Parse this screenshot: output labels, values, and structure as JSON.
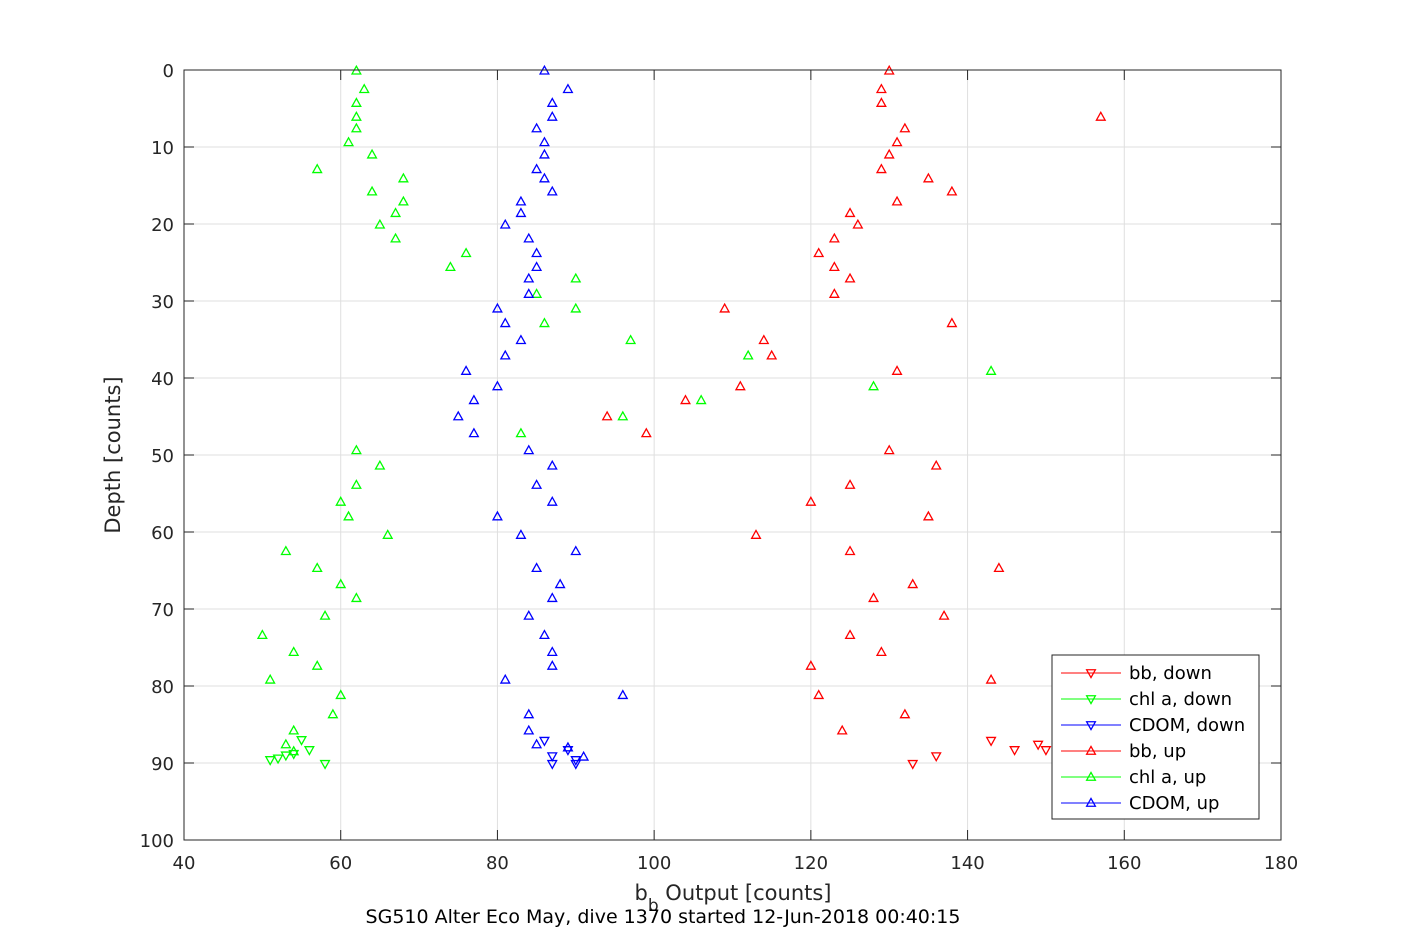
{
  "title": "SG510 Alter Eco May, dive 1370 started 12-Jun-2018 00:40:15",
  "chart_data": {
    "type": "scatter",
    "xlabel_main": "b",
    "xlabel_sub": "b",
    "xlabel_rest": " Output [counts]",
    "ylabel": "Depth [counts]",
    "xlim": [
      40,
      180
    ],
    "ylim": [
      0,
      100
    ],
    "y_reversed": true,
    "grid": true,
    "legend_position": "bottom-right",
    "xticks": [
      40,
      60,
      80,
      100,
      120,
      140,
      160,
      180
    ],
    "yticks": [
      0,
      10,
      20,
      30,
      40,
      50,
      60,
      70,
      80,
      90,
      100
    ],
    "series": [
      {
        "name": "bb, down",
        "color": "#ff0000",
        "marker": "triangle-down",
        "points": [
          [
            136,
            89.1
          ],
          [
            133,
            90.1
          ],
          [
            143,
            87.1
          ],
          [
            146,
            88.3
          ],
          [
            149,
            87.6
          ],
          [
            150,
            88.3
          ]
        ]
      },
      {
        "name": "chl a, down",
        "color": "#00ff00",
        "marker": "triangle-down",
        "points": [
          [
            55,
            87.0
          ],
          [
            56,
            88.3
          ],
          [
            53,
            89.0
          ],
          [
            52,
            89.4
          ],
          [
            51,
            89.6
          ],
          [
            54,
            88.8
          ],
          [
            58,
            90.1
          ]
        ]
      },
      {
        "name": "CDOM, down",
        "color": "#0000ff",
        "marker": "triangle-down",
        "points": [
          [
            86,
            87.1
          ],
          [
            87,
            89.1
          ],
          [
            89,
            88.3
          ],
          [
            90,
            89.6
          ],
          [
            90,
            90.1
          ],
          [
            87,
            90.1
          ]
        ]
      },
      {
        "name": "bb, up",
        "color": "#ff0000",
        "marker": "triangle-up",
        "points": [
          [
            130,
            0.1
          ],
          [
            129,
            2.5
          ],
          [
            129,
            4.3
          ],
          [
            157,
            6.1
          ],
          [
            132,
            7.6
          ],
          [
            131,
            9.4
          ],
          [
            130,
            11.0
          ],
          [
            129,
            12.9
          ],
          [
            135,
            14.1
          ],
          [
            138,
            15.8
          ],
          [
            131,
            17.1
          ],
          [
            125,
            18.6
          ],
          [
            126,
            20.1
          ],
          [
            123,
            21.9
          ],
          [
            121,
            23.8
          ],
          [
            123,
            25.6
          ],
          [
            125,
            27.1
          ],
          [
            123,
            29.1
          ],
          [
            109,
            31.0
          ],
          [
            138,
            32.9
          ],
          [
            114,
            35.1
          ],
          [
            115,
            37.1
          ],
          [
            131,
            39.1
          ],
          [
            111,
            41.1
          ],
          [
            104,
            42.9
          ],
          [
            94,
            45.0
          ],
          [
            99,
            47.2
          ],
          [
            130,
            49.4
          ],
          [
            136,
            51.4
          ],
          [
            125,
            53.9
          ],
          [
            120,
            56.1
          ],
          [
            135,
            58.0
          ],
          [
            113,
            60.4
          ],
          [
            125,
            62.5
          ],
          [
            144,
            64.7
          ],
          [
            133,
            66.8
          ],
          [
            128,
            68.6
          ],
          [
            137,
            70.9
          ],
          [
            125,
            73.4
          ],
          [
            129,
            75.6
          ],
          [
            120,
            77.4
          ],
          [
            143,
            79.2
          ],
          [
            121,
            81.2
          ],
          [
            132,
            83.7
          ],
          [
            124,
            85.8
          ]
        ]
      },
      {
        "name": "chl a, up",
        "color": "#00ff00",
        "marker": "triangle-up",
        "points": [
          [
            62,
            0.1
          ],
          [
            63,
            2.5
          ],
          [
            62,
            4.3
          ],
          [
            62,
            6.1
          ],
          [
            62,
            7.6
          ],
          [
            61,
            9.4
          ],
          [
            64,
            11.0
          ],
          [
            57,
            12.9
          ],
          [
            68,
            14.1
          ],
          [
            64,
            15.8
          ],
          [
            68,
            17.1
          ],
          [
            67,
            18.6
          ],
          [
            65,
            20.1
          ],
          [
            67,
            21.9
          ],
          [
            76,
            23.8
          ],
          [
            74,
            25.6
          ],
          [
            90,
            27.1
          ],
          [
            85,
            29.1
          ],
          [
            90,
            31.0
          ],
          [
            86,
            32.9
          ],
          [
            97,
            35.1
          ],
          [
            112,
            37.1
          ],
          [
            143,
            39.1
          ],
          [
            128,
            41.1
          ],
          [
            106,
            42.9
          ],
          [
            96,
            45.0
          ],
          [
            83,
            47.2
          ],
          [
            62,
            49.4
          ],
          [
            65,
            51.4
          ],
          [
            62,
            53.9
          ],
          [
            60,
            56.1
          ],
          [
            61,
            58.0
          ],
          [
            66,
            60.4
          ],
          [
            53,
            62.5
          ],
          [
            57,
            64.7
          ],
          [
            60,
            66.8
          ],
          [
            62,
            68.6
          ],
          [
            58,
            70.9
          ],
          [
            50,
            73.4
          ],
          [
            54,
            75.6
          ],
          [
            57,
            77.4
          ],
          [
            51,
            79.2
          ],
          [
            60,
            81.2
          ],
          [
            59,
            83.7
          ],
          [
            54,
            85.8
          ],
          [
            53,
            87.6
          ],
          [
            54,
            88.5
          ]
        ]
      },
      {
        "name": "CDOM, up",
        "color": "#0000ff",
        "marker": "triangle-up",
        "points": [
          [
            86,
            0.1
          ],
          [
            89,
            2.5
          ],
          [
            87,
            4.3
          ],
          [
            87,
            6.1
          ],
          [
            85,
            7.6
          ],
          [
            86,
            9.4
          ],
          [
            86,
            11.0
          ],
          [
            85,
            12.9
          ],
          [
            86,
            14.1
          ],
          [
            87,
            15.8
          ],
          [
            83,
            17.1
          ],
          [
            83,
            18.6
          ],
          [
            81,
            20.1
          ],
          [
            84,
            21.9
          ],
          [
            85,
            23.8
          ],
          [
            85,
            25.6
          ],
          [
            84,
            27.1
          ],
          [
            84,
            29.1
          ],
          [
            80,
            31.0
          ],
          [
            81,
            32.9
          ],
          [
            83,
            35.1
          ],
          [
            81,
            37.1
          ],
          [
            76,
            39.1
          ],
          [
            80,
            41.1
          ],
          [
            77,
            42.9
          ],
          [
            75,
            45.0
          ],
          [
            77,
            47.2
          ],
          [
            84,
            49.4
          ],
          [
            87,
            51.4
          ],
          [
            85,
            53.9
          ],
          [
            87,
            56.1
          ],
          [
            80,
            58.0
          ],
          [
            83,
            60.4
          ],
          [
            90,
            62.5
          ],
          [
            85,
            64.7
          ],
          [
            88,
            66.8
          ],
          [
            87,
            68.6
          ],
          [
            84,
            70.9
          ],
          [
            86,
            73.4
          ],
          [
            87,
            75.6
          ],
          [
            87,
            77.4
          ],
          [
            81,
            79.2
          ],
          [
            96,
            81.2
          ],
          [
            84,
            83.7
          ],
          [
            84,
            85.8
          ],
          [
            85,
            87.6
          ],
          [
            89,
            88.0
          ],
          [
            91,
            89.2
          ]
        ]
      }
    ]
  }
}
